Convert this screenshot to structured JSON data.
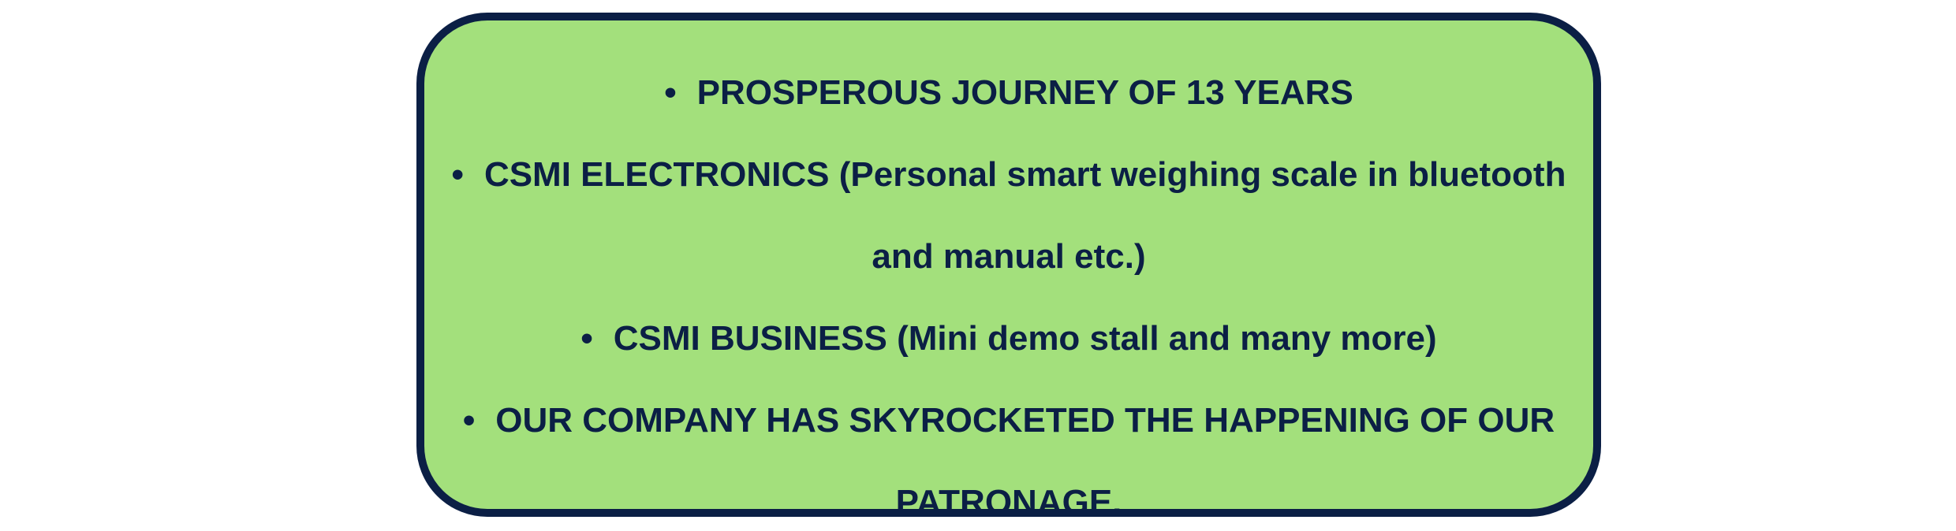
{
  "panel": {
    "border_color": "#0b1f45",
    "fill_color": "#a3e07c",
    "text_color": "#0b1f45",
    "bullet_symbol": "•",
    "items": [
      {
        "lines": [
          "PROSPEROUS JOURNEY OF 13 YEARS"
        ]
      },
      {
        "lines": [
          "CSMI ELECTRONICS (Personal smart weighing scale in bluetooth",
          "and manual etc.)"
        ]
      },
      {
        "lines": [
          "CSMI BUSINESS (Mini demo stall and many more)"
        ]
      },
      {
        "lines": [
          "OUR COMPANY HAS SKYROCKETED THE HAPPENING OF OUR",
          "PATRONAGE."
        ]
      }
    ]
  }
}
